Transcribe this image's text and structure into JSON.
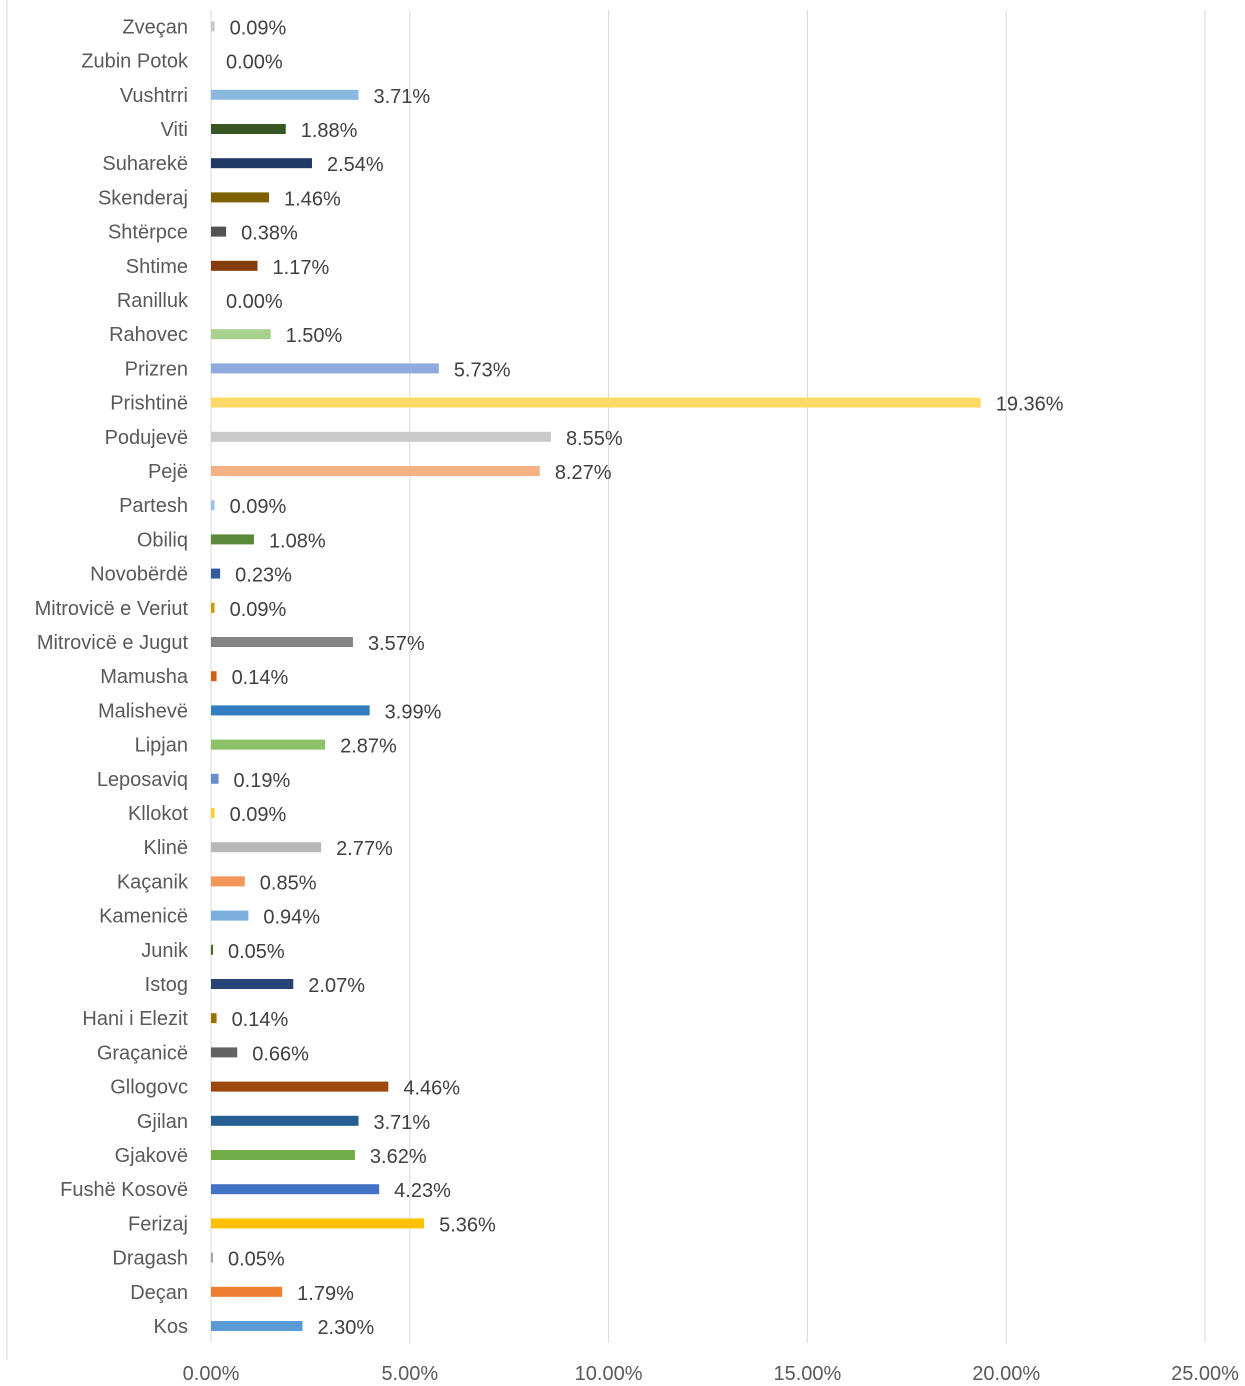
{
  "chart_data": {
    "type": "bar",
    "orientation": "horizontal",
    "title": "",
    "xlabel": "",
    "ylabel": "",
    "xlim": [
      0,
      25
    ],
    "grid": true,
    "legend": "none",
    "x_ticks": [
      "0.00%",
      "5.00%",
      "10.00%",
      "15.00%",
      "20.00%",
      "25.00%"
    ],
    "categories": [
      "Kos",
      "Deçan",
      "Dragash",
      "Ferizaj",
      "Fushë Kosovë",
      "Gjakovë",
      "Gjilan",
      "Gllogovc",
      "Graçanicë",
      "Hani i Elezit",
      "Istog",
      "Junik",
      "Kamenicë",
      "Kaçanik",
      "Klinë",
      "Kllokot",
      "Leposaviq",
      "Lipjan",
      "Malishevë",
      "Mamusha",
      "Mitrovicë e Jugut",
      "Mitrovicë e Veriut",
      "Novobërdë",
      "Obiliq",
      "Partesh",
      "Pejë",
      "Podujevë",
      "Prishtinë",
      "Prizren",
      "Rahovec",
      "Ranilluk",
      "Shtime",
      "Shtërpce",
      "Skenderaj",
      "Suharekë",
      "Viti",
      "Vushtrri",
      "Zubin Potok",
      "Zveçan"
    ],
    "values": [
      2.3,
      1.79,
      0.05,
      5.36,
      4.23,
      3.62,
      3.71,
      4.46,
      0.66,
      0.14,
      2.07,
      0.05,
      0.94,
      0.85,
      2.77,
      0.09,
      0.19,
      2.87,
      3.99,
      0.14,
      3.57,
      0.09,
      0.23,
      1.08,
      0.09,
      8.27,
      8.55,
      19.36,
      5.73,
      1.5,
      0.0,
      1.17,
      0.38,
      1.46,
      2.54,
      1.88,
      3.71,
      0.0,
      0.09
    ],
    "value_labels": [
      "2.30%",
      "1.79%",
      "0.05%",
      "5.36%",
      "4.23%",
      "3.62%",
      "3.71%",
      "4.46%",
      "0.66%",
      "0.14%",
      "2.07%",
      "0.05%",
      "0.94%",
      "0.85%",
      "2.77%",
      "0.09%",
      "0.19%",
      "2.87%",
      "3.99%",
      "0.14%",
      "3.57%",
      "0.09%",
      "0.23%",
      "1.08%",
      "0.09%",
      "8.27%",
      "8.55%",
      "19.36%",
      "5.73%",
      "1.50%",
      "0.00%",
      "1.17%",
      "0.38%",
      "1.46%",
      "2.54%",
      "1.88%",
      "3.71%",
      "0.00%",
      "0.09%"
    ],
    "colors": [
      "#5B9BD5",
      "#ED7D31",
      "#A5A5A5",
      "#FFC000",
      "#4472C4",
      "#70AD47",
      "#255E91",
      "#9E480E",
      "#636363",
      "#997300",
      "#264478",
      "#43682B",
      "#7CAFDD",
      "#F1975A",
      "#B7B7B7",
      "#FFCD33",
      "#698ED0",
      "#8CC168",
      "#327DC2",
      "#D26012",
      "#848484",
      "#CC9A00",
      "#335AA1",
      "#5A8A39",
      "#9DC3E6",
      "#F4B183",
      "#C9C9C9",
      "#FFD966",
      "#8FAADC",
      "#A9D18E",
      "#A5A5A5",
      "#843C0C",
      "#525252",
      "#7F6000",
      "#203864",
      "#375623",
      "#8AB8E0",
      "#A5A5A5",
      "#C9C9C9"
    ]
  }
}
